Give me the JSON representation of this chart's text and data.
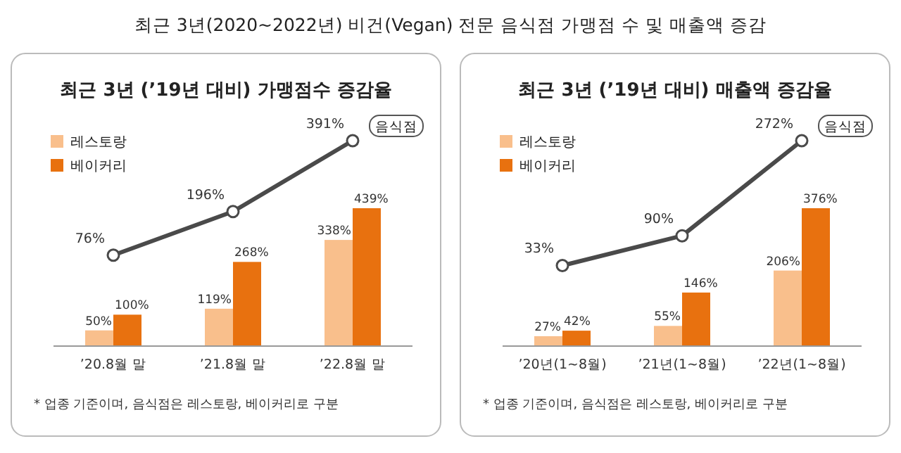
{
  "chart_data": [
    {
      "type": "bar",
      "subtitle": "최근 3년(2020~2022년) 비건(Vegan) 전문 음식점 가맹점 수 및 매출액 증감",
      "title": "최근 3년 (’19년 대비) 가맹점수 증감율",
      "categories": [
        "’20.8월 말",
        "’21.8월 말",
        "’22.8월 말"
      ],
      "series": [
        {
          "name": "레스토랑",
          "color": "#f9bf8c",
          "values": [
            50,
            119,
            338
          ],
          "value_labels": [
            "50%",
            "119%",
            "338%"
          ]
        },
        {
          "name": "베이커리",
          "color": "#e8710f",
          "values": [
            100,
            268,
            439
          ],
          "value_labels": [
            "100%",
            "268%",
            "439%"
          ]
        },
        {
          "name": "음식점",
          "type": "line",
          "axis": "y2",
          "color": "#4a4a4a",
          "marker": "circle",
          "values": [
            76,
            196,
            391
          ],
          "value_labels": [
            "76%",
            "196%",
            "391%"
          ]
        }
      ],
      "legend": "top left",
      "annotations": [
        "* 업종 기준이며, 음식점은 레스토랑, 베이커리로 구분"
      ]
    },
    {
      "type": "bar",
      "title": "최근 3년 (’19년 대비) 매출액 증감율",
      "categories": [
        "’20년(1~8월)",
        "’21년(1~8월)",
        "’22년(1~8월)"
      ],
      "series": [
        {
          "name": "레스토랑",
          "color": "#f9bf8c",
          "values": [
            27,
            55,
            206
          ],
          "value_labels": [
            "27%",
            "55%",
            "206%"
          ]
        },
        {
          "name": "베이커리",
          "color": "#e8710f",
          "values": [
            42,
            146,
            376
          ],
          "value_labels": [
            "42%",
            "146%",
            "376%"
          ]
        },
        {
          "name": "음식점",
          "type": "line",
          "axis": "y2",
          "color": "#4a4a4a",
          "marker": "circle",
          "values": [
            33,
            90,
            272
          ],
          "value_labels": [
            "33%",
            "90%",
            "272%"
          ]
        }
      ],
      "legend": "top left",
      "annotations": [
        "* 업종 기준이며, 음식점은 레스토랑, 베이커리로 구분"
      ]
    }
  ]
}
